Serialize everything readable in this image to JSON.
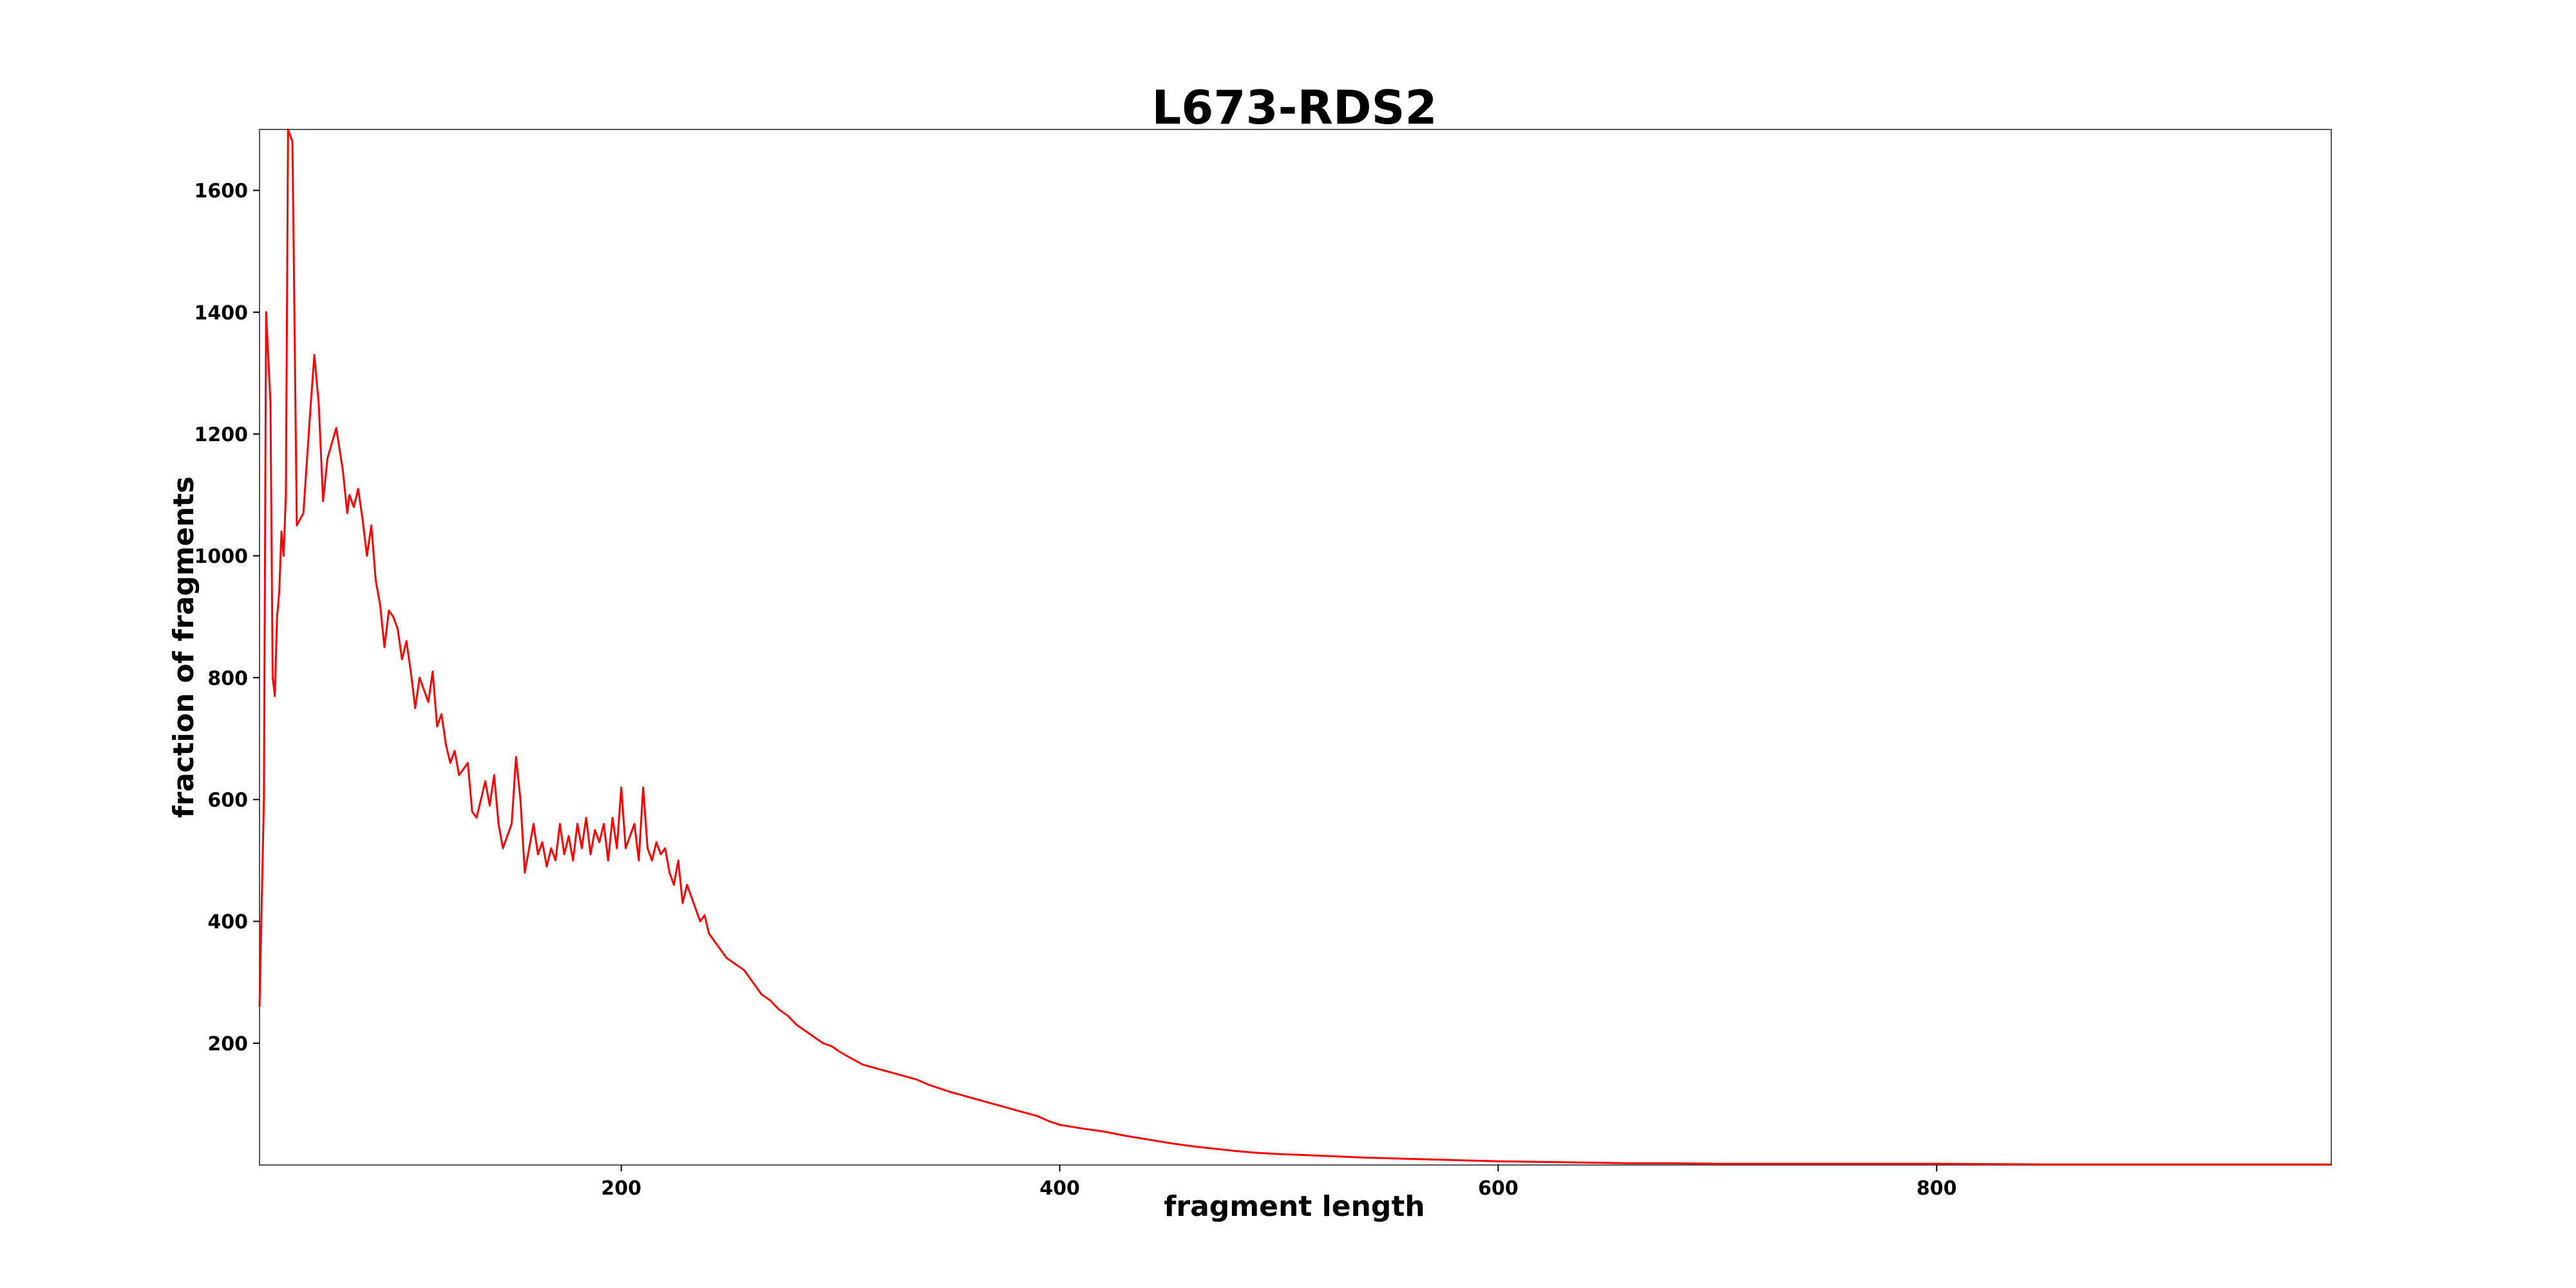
{
  "chart_data": {
    "type": "line",
    "title": "L673-RDS2",
    "xlabel": "fragment length",
    "ylabel": "fraction of fragments",
    "xlim": [
      35,
      980
    ],
    "ylim": [
      0,
      1700
    ],
    "xticks": [
      200,
      400,
      600,
      800
    ],
    "yticks": [
      200,
      400,
      600,
      800,
      1000,
      1200,
      1400,
      1600
    ],
    "grid": false,
    "line_color": "#ff0000",
    "series": [
      {
        "x": [
          35,
          37,
          38,
          40,
          41,
          42,
          43,
          44,
          45,
          46,
          47,
          48,
          50,
          52,
          55,
          58,
          60,
          62,
          64,
          66,
          70,
          73,
          75,
          76,
          78,
          80,
          82,
          84,
          86,
          88,
          90,
          92,
          94,
          96,
          98,
          100,
          102,
          104,
          106,
          108,
          110,
          112,
          114,
          116,
          118,
          120,
          122,
          124,
          126,
          128,
          130,
          132,
          134,
          136,
          138,
          140,
          142,
          144,
          146,
          148,
          150,
          152,
          154,
          156,
          158,
          160,
          162,
          164,
          166,
          168,
          170,
          172,
          174,
          176,
          178,
          180,
          182,
          184,
          186,
          188,
          190,
          192,
          194,
          196,
          198,
          200,
          202,
          204,
          206,
          208,
          210,
          212,
          214,
          216,
          218,
          220,
          222,
          224,
          226,
          228,
          230,
          232,
          234,
          236,
          238,
          240,
          244,
          248,
          252,
          256,
          260,
          264,
          268,
          272,
          276,
          280,
          284,
          288,
          292,
          296,
          300,
          305,
          310,
          315,
          320,
          325,
          330,
          335,
          340,
          345,
          350,
          355,
          360,
          365,
          370,
          375,
          380,
          385,
          390,
          395,
          400,
          410,
          420,
          430,
          440,
          450,
          460,
          470,
          480,
          490,
          500,
          520,
          540,
          560,
          580,
          600,
          620,
          640,
          660,
          680,
          700,
          750,
          800,
          850,
          900,
          950,
          980
        ],
        "y": [
          260,
          600,
          1400,
          1250,
          800,
          770,
          900,
          940,
          1040,
          1000,
          1100,
          1700,
          1680,
          1050,
          1070,
          1230,
          1330,
          1250,
          1090,
          1160,
          1210,
          1140,
          1070,
          1100,
          1080,
          1110,
          1060,
          1000,
          1050,
          960,
          920,
          850,
          910,
          900,
          880,
          830,
          860,
          810,
          750,
          800,
          780,
          760,
          810,
          720,
          740,
          690,
          660,
          680,
          640,
          650,
          660,
          580,
          570,
          600,
          630,
          590,
          640,
          560,
          520,
          540,
          560,
          670,
          600,
          480,
          520,
          560,
          510,
          530,
          490,
          520,
          500,
          560,
          510,
          540,
          500,
          560,
          520,
          570,
          510,
          550,
          530,
          560,
          500,
          570,
          520,
          620,
          520,
          540,
          560,
          500,
          620,
          520,
          500,
          530,
          510,
          520,
          480,
          460,
          500,
          430,
          460,
          440,
          420,
          400,
          410,
          380,
          360,
          340,
          330,
          320,
          300,
          280,
          270,
          255,
          245,
          230,
          220,
          210,
          200,
          195,
          185,
          175,
          165,
          160,
          155,
          150,
          145,
          140,
          132,
          126,
          120,
          115,
          110,
          105,
          100,
          95,
          90,
          85,
          80,
          72,
          66,
          60,
          55,
          48,
          42,
          36,
          31,
          27,
          23,
          20,
          18,
          15,
          12,
          10,
          8,
          6,
          5,
          4,
          3,
          3,
          2,
          2,
          2,
          1,
          1,
          1,
          1
        ]
      }
    ]
  }
}
